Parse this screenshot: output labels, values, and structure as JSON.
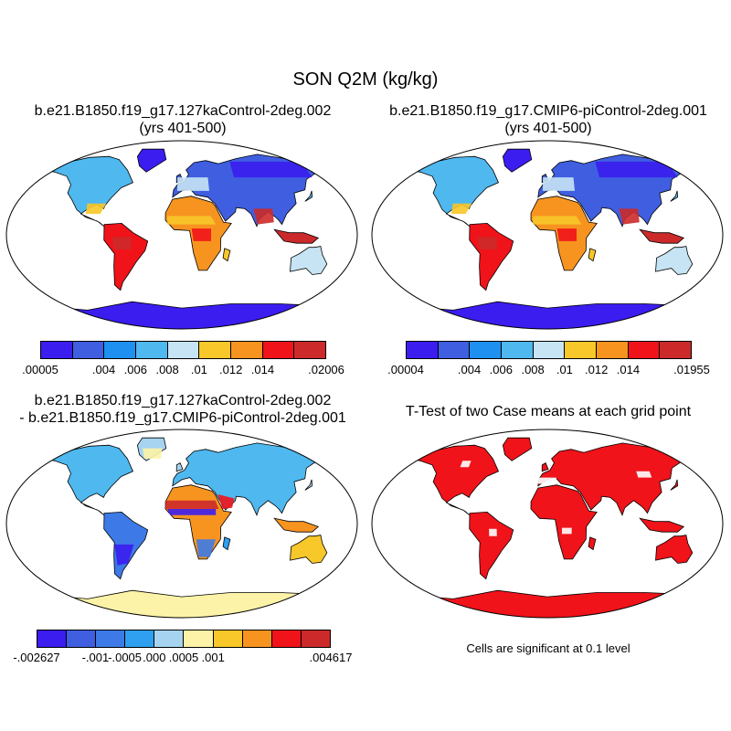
{
  "figure": {
    "title": "SON Q2M (kg/kg)",
    "panels": [
      {
        "id": "p1",
        "title_line1": "b.e21.B1850.f19_g17.127kaControl-2deg.002",
        "title_line2": "(yrs 401-500)",
        "colorbar": {
          "colors": [
            "#3b1df0",
            "#3f5fe0",
            "#1e90f0",
            "#4fb8ef",
            "#c6e4f4",
            "#f8c729",
            "#f79420",
            "#f0131a",
            "#cc2a2a"
          ],
          "tick_labels": [
            ".00005",
            ".004",
            ".006",
            ".008",
            ".01",
            ".012",
            ".014",
            ".02006"
          ]
        }
      },
      {
        "id": "p2",
        "title_line1": "b.e21.B1850.f19_g17.CMIP6-piControl-2deg.001",
        "title_line2": "(yrs 401-500)",
        "colorbar": {
          "colors": [
            "#3b1df0",
            "#3f5fe0",
            "#1e90f0",
            "#4fb8ef",
            "#c6e4f4",
            "#f8c729",
            "#f79420",
            "#f0131a",
            "#cc2a2a"
          ],
          "tick_labels": [
            ".00004",
            ".004",
            ".006",
            ".008",
            ".01",
            ".012",
            ".014",
            ".01955"
          ]
        }
      },
      {
        "id": "p3",
        "title_line1": "b.e21.B1850.f19_g17.127kaControl-2deg.002",
        "title_line2": "- b.e21.B1850.f19_g17.CMIP6-piControl-2deg.001",
        "colorbar": {
          "colors": [
            "#3b1df0",
            "#3f5fe0",
            "#3d7ae8",
            "#2ea0ef",
            "#a6d3f0",
            "#fdf3a8",
            "#f8c729",
            "#f79420",
            "#f0131a",
            "#cc2a2a"
          ],
          "tick_labels": [
            "-.002627",
            "-.001",
            "-.0005",
            ".000",
            ".0005",
            ".001",
            ".004617"
          ]
        }
      },
      {
        "id": "p4",
        "title_line1": "T-Test of two Case means at each grid point",
        "note": "Cells are significant at 0.1 level"
      }
    ]
  }
}
